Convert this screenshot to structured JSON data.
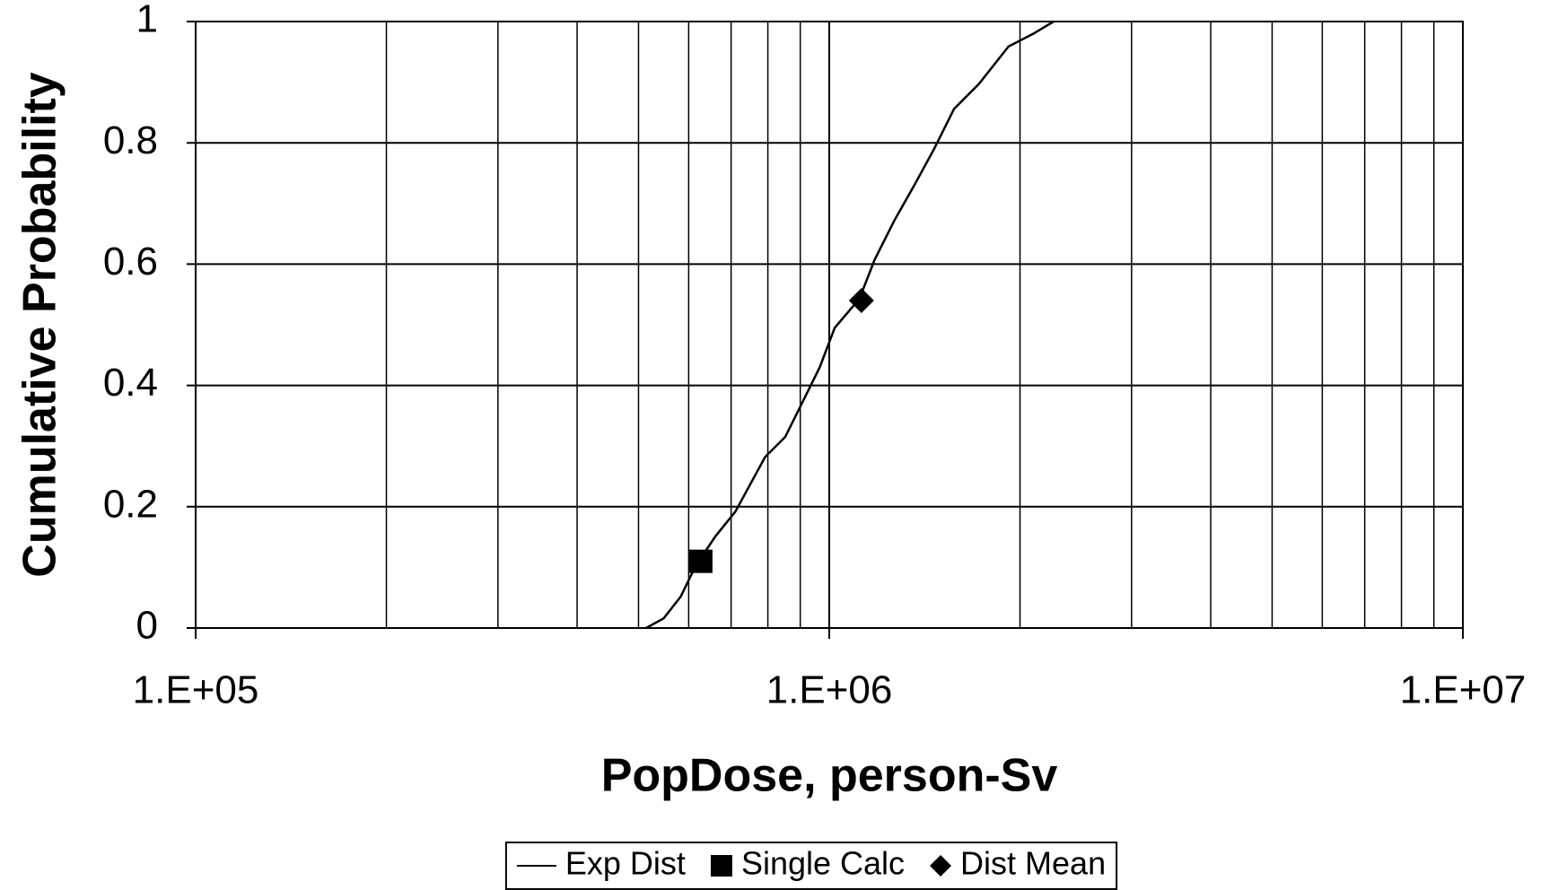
{
  "chart_data": {
    "type": "line",
    "xlabel": "PopDose, person-Sv",
    "ylabel": "Cumulative Probability",
    "xscale": "log",
    "xlim": [
      100000,
      10000000
    ],
    "ylim": [
      0,
      1
    ],
    "xticks": [
      {
        "value": 100000,
        "label": "1.E+05"
      },
      {
        "value": 1000000,
        "label": "1.E+06"
      },
      {
        "value": 10000000,
        "label": "1.E+07"
      }
    ],
    "xminorticks": [
      200000,
      300000,
      400000,
      500000,
      600000,
      700000,
      800000,
      900000,
      2000000,
      3000000,
      4000000,
      5000000,
      6000000,
      7000000,
      8000000,
      9000000
    ],
    "yticks": [
      0,
      0.2,
      0.4,
      0.6,
      0.8,
      1
    ],
    "grid": true,
    "legend": "bottom",
    "series": [
      {
        "name": "Exp Dist",
        "color": "#000000",
        "marker": "line",
        "x": [
          514000,
          548000,
          583000,
          615000,
          661000,
          711000,
          792000,
          852000,
          899000,
          966000,
          1020000,
          1116000,
          1179000,
          1267000,
          1362000,
          1464000,
          1574000,
          1722000,
          1919000,
          2100000,
          2260000
        ],
        "values": [
          0,
          0.016,
          0.052,
          0.102,
          0.151,
          0.192,
          0.282,
          0.315,
          0.364,
          0.43,
          0.495,
          0.543,
          0.607,
          0.672,
          0.73,
          0.79,
          0.856,
          0.897,
          0.959,
          0.98,
          1
        ]
      },
      {
        "name": "Single Calc",
        "color": "#000000",
        "marker": "square",
        "x": [
          627000
        ],
        "values": [
          0.11
        ]
      },
      {
        "name": "Dist Mean",
        "color": "#000000",
        "marker": "diamond",
        "x": [
          1124000
        ],
        "values": [
          0.54
        ]
      }
    ]
  }
}
